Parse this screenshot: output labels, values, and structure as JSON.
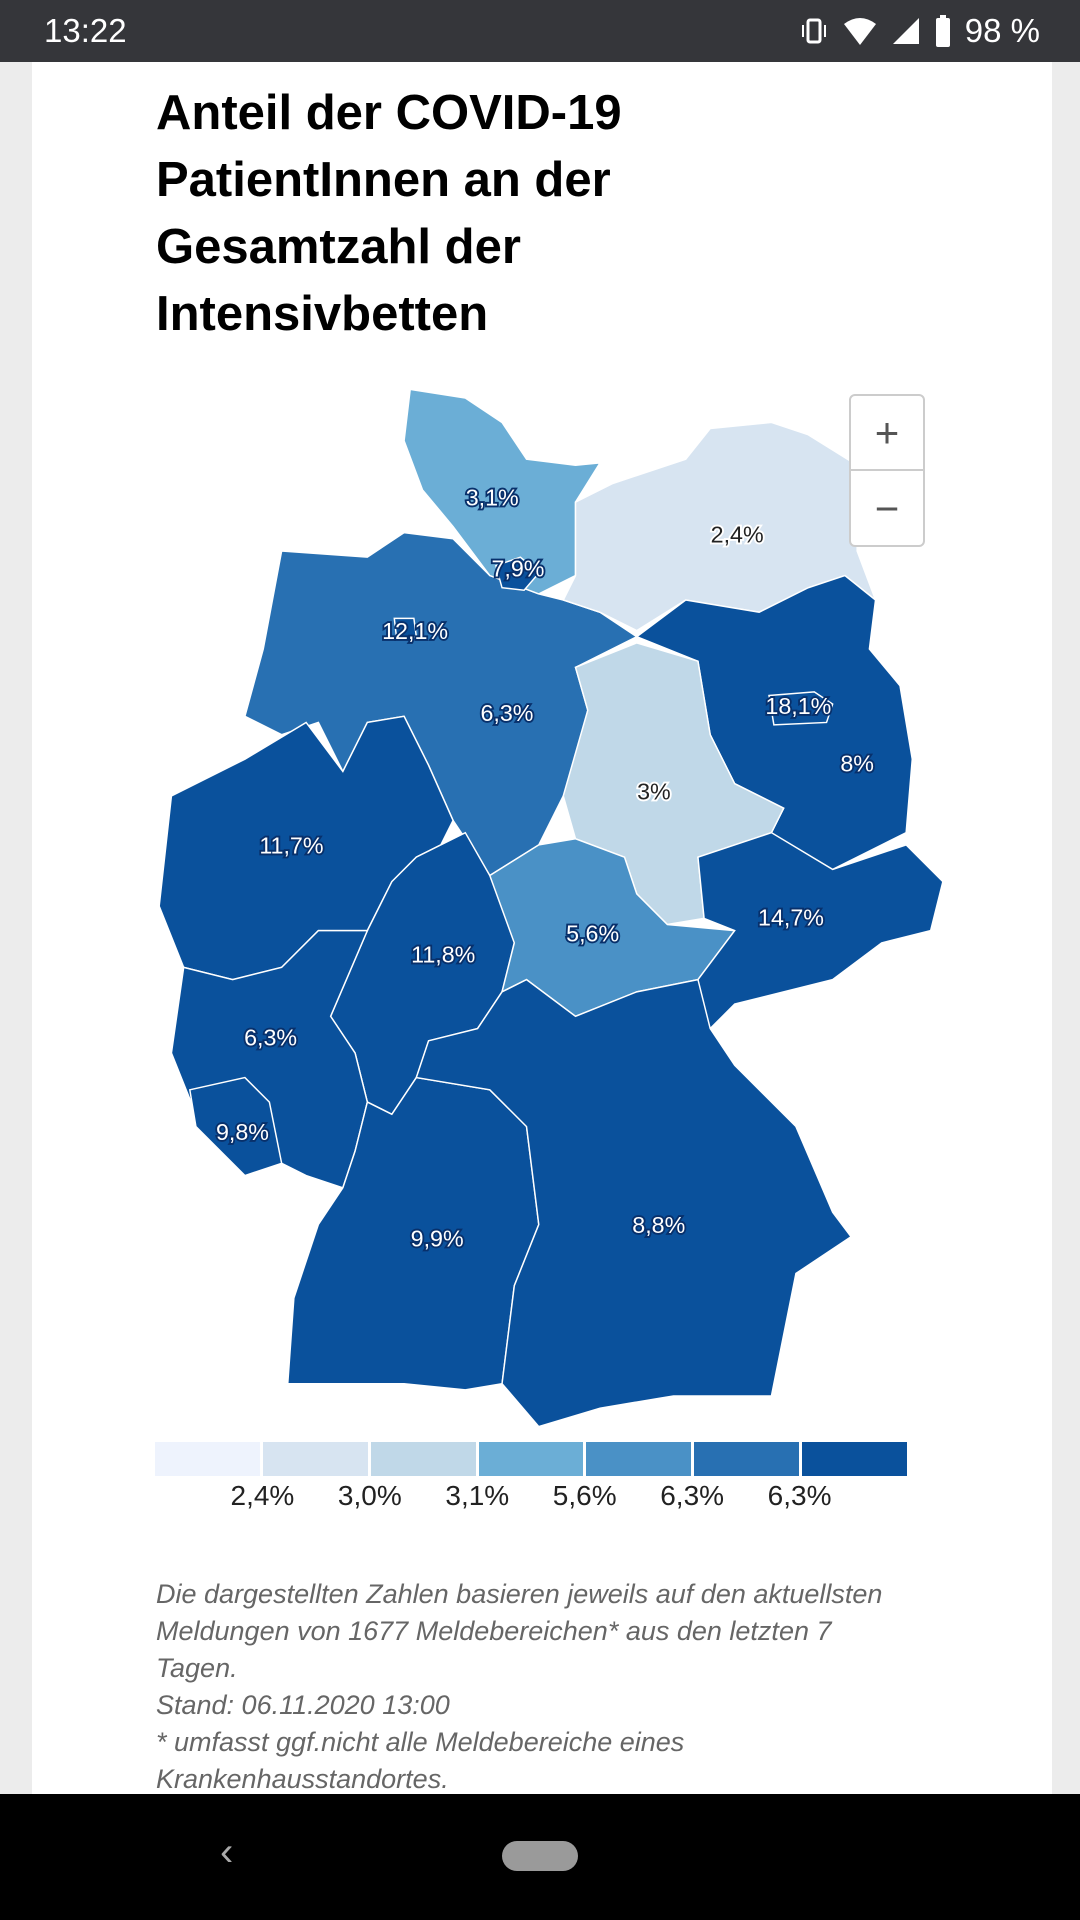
{
  "status": {
    "time": "13:22",
    "battery": "98 %",
    "icons": [
      "vibrate-icon",
      "wifi-icon",
      "signal-icon",
      "battery-icon"
    ]
  },
  "title": "Anteil der COVID-19 PatientInnen an der Gesamtzahl der Intensivbetten",
  "zoom": {
    "in": "+",
    "out": "−"
  },
  "colors": [
    "#eef3fd",
    "#d7e4f1",
    "#c0d8e8",
    "#6baed6",
    "#4a91c6",
    "#2870b2",
    "#0a519c"
  ],
  "legend": [
    "2,4%",
    "3,0%",
    "3,1%",
    "5,6%",
    "6,3%",
    "6,3%"
  ],
  "regions": [
    {
      "name": "schleswig-holstein",
      "label": "3,1%",
      "color": 3
    },
    {
      "name": "mecklenburg-vorpommern",
      "label": "2,4%",
      "color": 1
    },
    {
      "name": "niedersachsen",
      "label": "12,1%",
      "color": 5
    },
    {
      "name": "bremen",
      "label": "",
      "color": 6
    },
    {
      "name": "hamburg",
      "label": "7,9%",
      "color": 6
    },
    {
      "name": "brandenburg",
      "label": "8%",
      "color": 6
    },
    {
      "name": "berlin",
      "label": "18,1%",
      "color": 6
    },
    {
      "name": "sachsen-anhalt",
      "label": "3%",
      "color": 2
    },
    {
      "name": "nordrhein-westfalen",
      "label": "11,7%",
      "color": 6
    },
    {
      "name": "hessen",
      "label": "11,8%",
      "color": 6
    },
    {
      "name": "thueringen",
      "label": "5,6%",
      "color": 4
    },
    {
      "name": "sachsen",
      "label": "14,7%",
      "color": 6
    },
    {
      "name": "rheinland-pfalz",
      "label": "6,3%",
      "color": 6
    },
    {
      "name": "saarland",
      "label": "9,8%",
      "color": 6
    },
    {
      "name": "baden-wuerttemberg",
      "label": "9,9%",
      "color": 6
    },
    {
      "name": "bayern",
      "label": "8,8%",
      "color": 6
    },
    {
      "name": "niedersachsen-sued",
      "label": "6,3%",
      "color": 5
    }
  ],
  "note": [
    "Die dargestellten Zahlen basieren jeweils auf den aktuellsten Meldungen von 1677 Meldebereichen* aus den letzten 7 Tagen.",
    "Stand: 06.11.2020 13:00",
    "* umfasst ggf.nicht alle Meldebereiche eines Krankenhausstandortes."
  ]
}
